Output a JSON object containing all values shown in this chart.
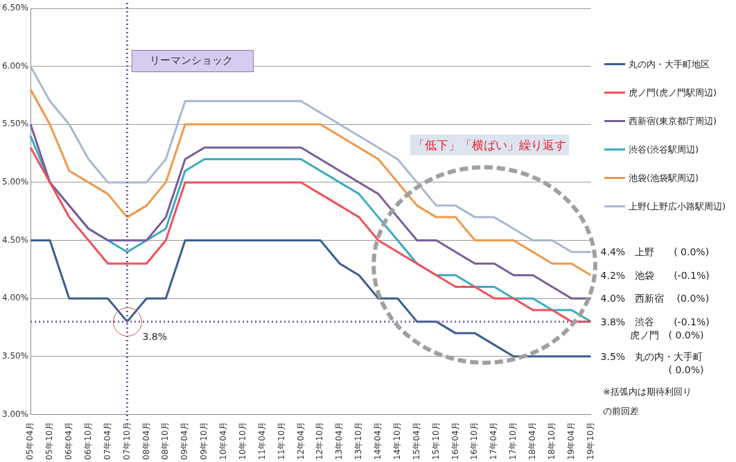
{
  "chart_data": {
    "type": "line",
    "categories": [
      "05年04月",
      "05年10月",
      "06年04月",
      "06年10月",
      "07年04月",
      "07年10月",
      "08年04月",
      "08年10月",
      "09年04月",
      "09年10月",
      "10年04月",
      "10年10月",
      "11年04月",
      "11年10月",
      "12年04月",
      "12年10月",
      "13年04月",
      "13年10月",
      "14年04月",
      "14年10月",
      "15年04月",
      "15年10月",
      "16年04月",
      "16年10月",
      "17年04月",
      "17年10月",
      "18年04月",
      "18年10月",
      "19年04月",
      "19年10月"
    ],
    "series": [
      {
        "name": "丸の内・大手町地区",
        "color": "#3b5f8f",
        "values": [
          4.5,
          4.5,
          4.0,
          4.0,
          4.0,
          3.8,
          4.0,
          4.0,
          4.5,
          4.5,
          4.5,
          4.5,
          4.5,
          4.5,
          4.5,
          4.5,
          4.3,
          4.2,
          4.0,
          4.0,
          3.8,
          3.8,
          3.7,
          3.7,
          3.6,
          3.5,
          3.5,
          3.5,
          3.5,
          3.5
        ]
      },
      {
        "name": "虎ノ門(虎ノ門駅周辺)",
        "color": "#f0505a",
        "values": [
          5.3,
          5.0,
          4.7,
          4.5,
          4.3,
          4.3,
          4.3,
          4.5,
          5.0,
          5.0,
          5.0,
          5.0,
          5.0,
          5.0,
          5.0,
          4.9,
          4.8,
          4.7,
          4.5,
          4.4,
          4.3,
          4.2,
          4.1,
          4.1,
          4.0,
          4.0,
          3.9,
          3.9,
          3.8,
          3.8
        ]
      },
      {
        "name": "西新宿(東京都庁周辺)",
        "color": "#7a5c9a",
        "values": [
          5.5,
          5.0,
          4.8,
          4.6,
          4.5,
          4.5,
          4.5,
          4.7,
          5.2,
          5.3,
          5.3,
          5.3,
          5.3,
          5.3,
          5.3,
          5.2,
          5.1,
          5.0,
          4.9,
          4.7,
          4.5,
          4.5,
          4.4,
          4.3,
          4.3,
          4.2,
          4.2,
          4.1,
          4.0,
          4.0
        ]
      },
      {
        "name": "渋谷(渋谷駅周辺)",
        "color": "#3aabc0",
        "values": [
          5.4,
          5.0,
          4.8,
          4.6,
          4.5,
          4.4,
          4.5,
          4.6,
          5.1,
          5.2,
          5.2,
          5.2,
          5.2,
          5.2,
          5.2,
          5.1,
          5.0,
          4.9,
          4.7,
          4.5,
          4.3,
          4.2,
          4.2,
          4.1,
          4.1,
          4.0,
          4.0,
          3.9,
          3.9,
          3.8
        ]
      },
      {
        "name": "池袋(池袋駅周辺)",
        "color": "#f0984a",
        "values": [
          5.8,
          5.5,
          5.1,
          5.0,
          4.9,
          4.7,
          4.8,
          5.0,
          5.5,
          5.5,
          5.5,
          5.5,
          5.5,
          5.5,
          5.5,
          5.5,
          5.4,
          5.3,
          5.2,
          5.0,
          4.8,
          4.7,
          4.7,
          4.5,
          4.5,
          4.5,
          4.4,
          4.3,
          4.3,
          4.2
        ]
      },
      {
        "name": "上野(上野広小路駅周辺)",
        "color": "#a8b8d0",
        "values": [
          6.0,
          5.7,
          5.5,
          5.2,
          5.0,
          5.0,
          5.0,
          5.2,
          5.7,
          5.7,
          5.7,
          5.7,
          5.7,
          5.7,
          5.7,
          5.6,
          5.5,
          5.4,
          5.3,
          5.2,
          5.0,
          4.8,
          4.8,
          4.7,
          4.7,
          4.6,
          4.5,
          4.5,
          4.4,
          4.4
        ]
      }
    ],
    "ylim": [
      3.0,
      6.5
    ],
    "yticks": [
      {
        "value": 3.0,
        "label": "3.00%"
      },
      {
        "value": 3.5,
        "label": "3.50%"
      },
      {
        "value": 4.0,
        "label": "4.00%"
      },
      {
        "value": 4.5,
        "label": "4.50%"
      },
      {
        "value": 5.0,
        "label": "5.00%"
      },
      {
        "value": 5.5,
        "label": "5.50%"
      },
      {
        "value": 6.0,
        "label": "6.00%"
      },
      {
        "value": 6.5,
        "label": "6.50%"
      }
    ],
    "grid": "y",
    "legend": "right",
    "marker": "none",
    "line_style": "solid",
    "ref_lines": [
      {
        "axis": "x",
        "value": "07年10月",
        "label": "リーマンショック",
        "color": "#7a5c9a",
        "line_style": "dotted"
      },
      {
        "axis": "y",
        "value": 3.8,
        "label": null,
        "color": "#7a5c9a",
        "line_style": "dotted"
      }
    ],
    "annotations": [
      "「低下」「横ばい」繰り返す",
      "※括弧内は期待利回りの前回差",
      {
        "text": "3.8%",
        "x": "07年10月",
        "y": 3.8
      },
      {
        "text": "4.4%　上野　　( 0.0%)",
        "x": "19年10月",
        "y": 4.4
      },
      {
        "text": "4.2%　池袋　　(-0.1%)",
        "x": "19年10月",
        "y": 4.2
      },
      {
        "text": "4.0%　西新宿　 (0.0%)",
        "x": "19年10月",
        "y": 4.0
      },
      {
        "text": "3.8%　渋谷　　(-0.1%)\n　　　虎ノ門　( 0.0%)",
        "x": "19年10月",
        "y": 3.8
      },
      {
        "text": "3.5%　丸の内・大手町\n　　　　　　　( 0.0%)",
        "x": "19年10月",
        "y": 3.5
      }
    ]
  }
}
